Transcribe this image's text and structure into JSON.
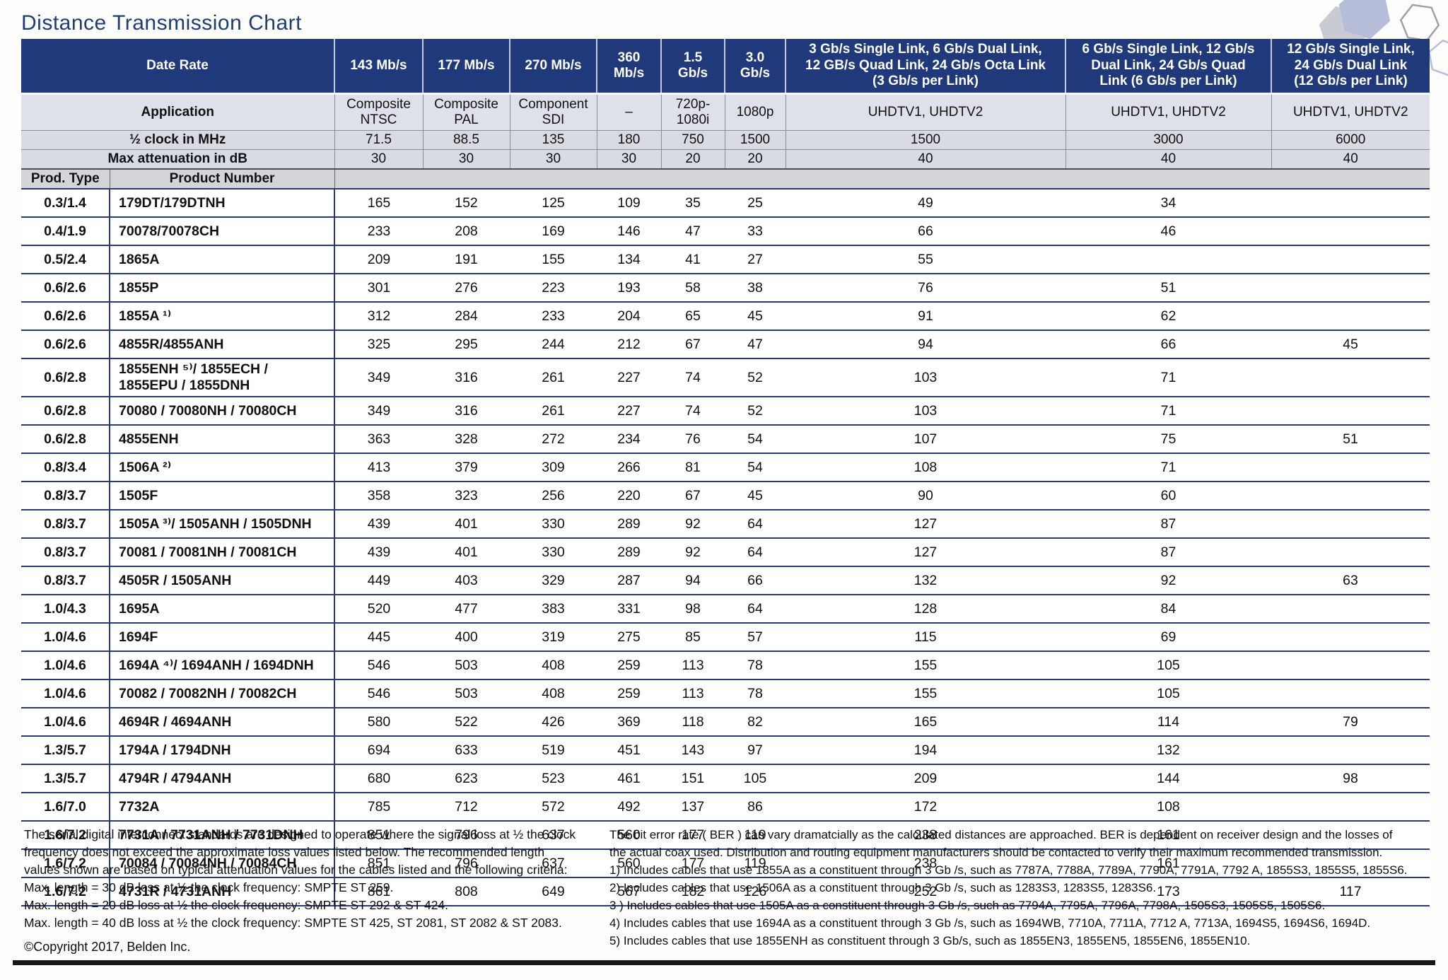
{
  "title": "Distance Transmission Chart",
  "table": {
    "corner": {
      "date_rate": "Date Rate",
      "application": "Application",
      "half_clock": "½ clock in MHz",
      "max_att": "Max attenuation in dB",
      "prod_type": "Prod. Type",
      "product_number": "Product Number"
    },
    "columns": [
      {
        "rate": "143 Mb/s",
        "application": "Composite\nNTSC",
        "half_clock": "71.5",
        "max_att": "30"
      },
      {
        "rate": "177 Mb/s",
        "application": "Composite\nPAL",
        "half_clock": "88.5",
        "max_att": "30"
      },
      {
        "rate": "270 Mb/s",
        "application": "Component\nSDI",
        "half_clock": "135",
        "max_att": "30"
      },
      {
        "rate": "360\nMb/s",
        "application": "–",
        "half_clock": "180",
        "max_att": "30"
      },
      {
        "rate": "1.5\nGb/s",
        "application": "720p-\n1080i",
        "half_clock": "750",
        "max_att": "20"
      },
      {
        "rate": "3.0\nGb/s",
        "application": "1080p",
        "half_clock": "1500",
        "max_att": "20"
      },
      {
        "rate": "3 Gb/s Single Link, 6 Gb/s Dual Link,\n12 GB/s Quad Link, 24 Gb/s Octa Link\n(3 Gb/s per Link)",
        "application": "UHDTV1, UHDTV2",
        "half_clock": "1500",
        "max_att": "40"
      },
      {
        "rate": "6 Gb/s Single Link, 12 Gb/s\nDual Link, 24 Gb/s Quad\nLink (6 Gb/s per Link)",
        "application": "UHDTV1, UHDTV2",
        "half_clock": "3000",
        "max_att": "40"
      },
      {
        "rate": "12 Gb/s Single Link,\n24 Gb/s Dual Link\n(12 Gb/s per Link)",
        "application": "UHDTV1, UHDTV2",
        "half_clock": "6000",
        "max_att": "40"
      }
    ],
    "rows": [
      {
        "type": "0.3/1.4",
        "product": "179DT/179DTNH",
        "values": [
          "165",
          "152",
          "125",
          "109",
          "35",
          "25",
          "49",
          "34",
          ""
        ]
      },
      {
        "type": "0.4/1.9",
        "product": "70078/70078CH",
        "values": [
          "233",
          "208",
          "169",
          "146",
          "47",
          "33",
          "66",
          "46",
          ""
        ]
      },
      {
        "type": "0.5/2.4",
        "product": "1865A",
        "values": [
          "209",
          "191",
          "155",
          "134",
          "41",
          "27",
          "55",
          "",
          ""
        ]
      },
      {
        "type": "0.6/2.6",
        "product": "1855P",
        "values": [
          "301",
          "276",
          "223",
          "193",
          "58",
          "38",
          "76",
          "51",
          ""
        ]
      },
      {
        "type": "0.6/2.6",
        "product": "1855A ¹⁾",
        "values": [
          "312",
          "284",
          "233",
          "204",
          "65",
          "45",
          "91",
          "62",
          ""
        ]
      },
      {
        "type": "0.6/2.6",
        "product": "4855R/4855ANH",
        "values": [
          "325",
          "295",
          "244",
          "212",
          "67",
          "47",
          "94",
          "66",
          "45"
        ]
      },
      {
        "type": "0.6/2.8",
        "product": "1855ENH ⁵⁾/ 1855ECH /\n1855EPU / 1855DNH",
        "values": [
          "349",
          "316",
          "261",
          "227",
          "74",
          "52",
          "103",
          "71",
          ""
        ]
      },
      {
        "type": "0.6/2.8",
        "product": "70080 / 70080NH / 70080CH",
        "values": [
          "349",
          "316",
          "261",
          "227",
          "74",
          "52",
          "103",
          "71",
          ""
        ]
      },
      {
        "type": "0.6/2.8",
        "product": "4855ENH",
        "values": [
          "363",
          "328",
          "272",
          "234",
          "76",
          "54",
          "107",
          "75",
          "51"
        ]
      },
      {
        "type": "0.8/3.4",
        "product": "1506A ²⁾",
        "values": [
          "413",
          "379",
          "309",
          "266",
          "81",
          "54",
          "108",
          "71",
          ""
        ]
      },
      {
        "type": "0.8/3.7",
        "product": "1505F",
        "values": [
          "358",
          "323",
          "256",
          "220",
          "67",
          "45",
          "90",
          "60",
          ""
        ]
      },
      {
        "type": "0.8/3.7",
        "product": "1505A ³⁾/ 1505ANH / 1505DNH",
        "values": [
          "439",
          "401",
          "330",
          "289",
          "92",
          "64",
          "127",
          "87",
          ""
        ]
      },
      {
        "type": "0.8/3.7",
        "product": "70081 / 70081NH / 70081CH",
        "values": [
          "439",
          "401",
          "330",
          "289",
          "92",
          "64",
          "127",
          "87",
          ""
        ]
      },
      {
        "type": "0.8/3.7",
        "product": "4505R / 1505ANH",
        "values": [
          "449",
          "403",
          "329",
          "287",
          "94",
          "66",
          "132",
          "92",
          "63"
        ]
      },
      {
        "type": "1.0/4.3",
        "product": "1695A",
        "values": [
          "520",
          "477",
          "383",
          "331",
          "98",
          "64",
          "128",
          "84",
          ""
        ]
      },
      {
        "type": "1.0/4.6",
        "product": "1694F",
        "values": [
          "445",
          "400",
          "319",
          "275",
          "85",
          "57",
          "115",
          "69",
          ""
        ]
      },
      {
        "type": "1.0/4.6",
        "product": "1694A ⁴⁾/ 1694ANH / 1694DNH",
        "values": [
          "546",
          "503",
          "408",
          "259",
          "113",
          "78",
          "155",
          "105",
          ""
        ]
      },
      {
        "type": "1.0/4.6",
        "product": "70082 / 70082NH / 70082CH",
        "values": [
          "546",
          "503",
          "408",
          "259",
          "113",
          "78",
          "155",
          "105",
          ""
        ]
      },
      {
        "type": "1.0/4.6",
        "product": "4694R / 4694ANH",
        "values": [
          "580",
          "522",
          "426",
          "369",
          "118",
          "82",
          "165",
          "114",
          "79"
        ]
      },
      {
        "type": "1.3/5.7",
        "product": "1794A / 1794DNH",
        "values": [
          "694",
          "633",
          "519",
          "451",
          "143",
          "97",
          "194",
          "132",
          ""
        ]
      },
      {
        "type": "1.3/5.7",
        "product": "4794R / 4794ANH",
        "values": [
          "680",
          "623",
          "523",
          "461",
          "151",
          "105",
          "209",
          "144",
          "98"
        ]
      },
      {
        "type": "1.6/7.0",
        "product": "7732A",
        "values": [
          "785",
          "712",
          "572",
          "492",
          "137",
          "86",
          "172",
          "108",
          ""
        ]
      },
      {
        "type": "1.6/7.2",
        "product": "7731A / 7731ANH / 7731DNH",
        "values": [
          "851",
          "796",
          "637",
          "560",
          "177",
          "119",
          "238",
          "161",
          ""
        ]
      },
      {
        "type": "1.6/7.2",
        "product": "70084 / 70084NH / 70084CH",
        "values": [
          "851",
          "796",
          "637",
          "560",
          "177",
          "119",
          "238",
          "161",
          ""
        ]
      },
      {
        "type": "1.6/7.2",
        "product": "4731R / 4731ANH",
        "values": [
          "861",
          "808",
          "649",
          "567",
          "182",
          "126",
          "252",
          "173",
          "117"
        ]
      }
    ]
  },
  "footnotes": {
    "left_lines": [
      "The serial digital interconnect standards are designed to operate where the signal loss at ½ the clock",
      "frequency does not exceed the approximate loss values listed below. The recommended length",
      "values shown are based on typical attenuation values for the cables listed and the following criteria:",
      "Max. length = 30 dB loss at ½ the clock frequency: SMPTE ST 259.",
      "Max. length = 20 dB loss at ½ the clock frequency: SMPTE ST 292 & ST 424.",
      "Max. length = 40 dB loss at ½ the clock frequency: SMPTE ST 425, ST 2081, ST 2082 & ST 2083."
    ],
    "copyright": "©Copyright 2017, Belden Inc.",
    "right_lines": [
      "The bit error rate ( BER ) can vary dramatcially as the calculated distances are approached. BER is dependent on receiver design and the losses of",
      "the actual coax used. Distribution and routing equipment manufacturers should be contacted to verify their maximum recommended transmission.",
      "1) Includes cables that use 1855A as a constituent through 3 Gb /s, such as 7787A, 7788A, 7789A, 7790A, 7791A, 7792 A, 1855S3, 1855S5, 1855S6.",
      "2) Includes cables that use 1506A as a constituent through 3 Gb /s, such as 1283S3, 1283S5, 1283S6.",
      "3 ) Includes cables that use 1505A as a constituent through 3 Gb /s, such as 7794A, 7795A, 7796A, 7798A, 1505S3, 1505S5, 1505S6.",
      "4) Includes cables that use 1694A as a constituent through 3 Gb /s, such as 1694WB, 7710A, 7711A, 7712 A, 7713A, 1694S5, 1694S6, 1694D.",
      "5) Includes cables that use 1855ENH as constituent through 3 Gb/s, such as 1855EN3, 1855EN5, 1855EN6, 1855EN10."
    ]
  },
  "colors": {
    "header_navy": "#20397a",
    "row_border_navy": "#2a3a6e",
    "app_row_bg": "#dee1ea",
    "gray_row_bg": "#d8dbe1",
    "title_navy": "#1d3e75"
  },
  "icons": [
    "hexagon-decoration"
  ]
}
